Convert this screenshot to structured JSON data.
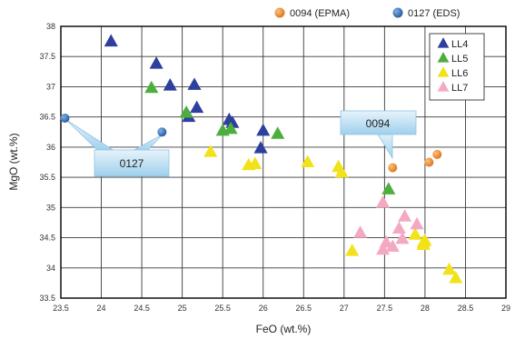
{
  "chart_data": {
    "type": "scatter",
    "xlabel": "FeO (wt.%)",
    "ylabel": "MgO (wt.%)",
    "xlim": [
      23.5,
      29
    ],
    "ylim": [
      33.5,
      38
    ],
    "x_ticks": [
      "23.5",
      "24",
      "24.5",
      "25",
      "25.5",
      "26",
      "26.5",
      "27",
      "27.5",
      "28",
      "28.5",
      "29"
    ],
    "y_ticks": [
      "33.5",
      "34",
      "34.5",
      "35",
      "35.5",
      "36",
      "36.5",
      "37",
      "37.5",
      "38"
    ],
    "grid": true,
    "series": [
      {
        "name": "LL4",
        "marker": "triangle",
        "color": "#2e3f9e",
        "points": [
          [
            24.12,
            37.75
          ],
          [
            24.68,
            37.38
          ],
          [
            24.85,
            37.02
          ],
          [
            25.15,
            37.03
          ],
          [
            25.18,
            36.65
          ],
          [
            25.08,
            36.5
          ],
          [
            25.58,
            36.45
          ],
          [
            25.62,
            36.4
          ],
          [
            26.0,
            36.27
          ],
          [
            25.97,
            35.98
          ]
        ]
      },
      {
        "name": "LL5",
        "marker": "triangle",
        "color": "#4caf3d",
        "points": [
          [
            24.62,
            36.98
          ],
          [
            25.05,
            36.57
          ],
          [
            25.5,
            36.27
          ],
          [
            25.6,
            36.3
          ],
          [
            26.18,
            36.22
          ],
          [
            27.55,
            35.3
          ]
        ]
      },
      {
        "name": "LL6",
        "marker": "triangle",
        "color": "#f2e21a",
        "points": [
          [
            25.35,
            35.92
          ],
          [
            25.82,
            35.7
          ],
          [
            25.9,
            35.72
          ],
          [
            26.55,
            35.75
          ],
          [
            26.93,
            35.67
          ],
          [
            26.97,
            35.58
          ],
          [
            27.1,
            34.28
          ],
          [
            27.88,
            34.55
          ],
          [
            27.98,
            34.42
          ],
          [
            27.98,
            34.38
          ],
          [
            28.0,
            34.45
          ],
          [
            28.3,
            33.97
          ],
          [
            28.38,
            33.83
          ]
        ]
      },
      {
        "name": "LL7",
        "marker": "triangle",
        "color": "#f4a9c3",
        "points": [
          [
            27.2,
            34.58
          ],
          [
            27.48,
            35.08
          ],
          [
            27.48,
            34.3
          ],
          [
            27.52,
            34.42
          ],
          [
            27.6,
            34.35
          ],
          [
            27.68,
            34.65
          ],
          [
            27.72,
            34.48
          ],
          [
            27.75,
            34.85
          ],
          [
            27.9,
            34.72
          ]
        ]
      },
      {
        "name": "0094 (EPMA)",
        "marker": "circle",
        "color": "#e8822a",
        "points": [
          [
            27.6,
            35.66
          ],
          [
            28.05,
            35.75
          ],
          [
            28.15,
            35.88
          ]
        ]
      },
      {
        "name": "0127 (EDS)",
        "marker": "circle",
        "color": "#2f6db5",
        "points": [
          [
            23.55,
            36.48
          ],
          [
            24.75,
            36.25
          ]
        ]
      }
    ],
    "top_legend": [
      "0094 (EPMA)",
      "0127 (EDS)"
    ],
    "box_legend": [
      "LL4",
      "LL5",
      "LL6",
      "LL7"
    ],
    "annotations": [
      {
        "text": "0127",
        "points_to": "0127 (EDS)"
      },
      {
        "text": "0094",
        "points_to": "0094 (EPMA)"
      }
    ]
  }
}
